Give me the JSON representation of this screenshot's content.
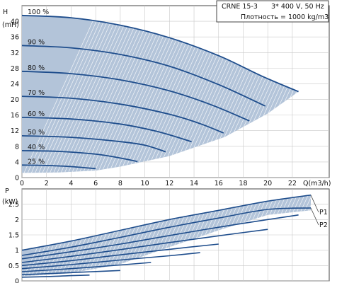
{
  "chart_data": [
    {
      "type": "line",
      "title": "",
      "info": {
        "model": "CRNE 15-3",
        "supply": "3* 400 V, 50 Hz",
        "density": "Плотность = 1000 kg/m3"
      },
      "xlabel": "Q(m3/h)",
      "ylabel": "H",
      "ylabel_unit": "(mH)",
      "xlim": [
        0,
        25
      ],
      "ylim": [
        0,
        44
      ],
      "xticks": [
        0,
        2,
        4,
        6,
        8,
        10,
        12,
        14,
        16,
        18,
        20,
        22
      ],
      "yticks": [
        0,
        4,
        8,
        12,
        16,
        20,
        24,
        28,
        32,
        36,
        40
      ],
      "grid": true,
      "envelope": {
        "upper": [
          [
            0,
            41.5
          ],
          [
            4,
            40.9
          ],
          [
            8,
            39.0
          ],
          [
            12,
            35.8
          ],
          [
            16,
            31.2
          ],
          [
            19.5,
            26.0
          ],
          [
            22.5,
            22.0
          ]
        ],
        "lower": [
          [
            22.5,
            22.0
          ],
          [
            20,
            16.4
          ],
          [
            16.5,
            10.4
          ],
          [
            12,
            5.5
          ],
          [
            8,
            2.8
          ],
          [
            6,
            1.8
          ],
          [
            3,
            1.3
          ],
          [
            0,
            1.2
          ]
        ]
      },
      "series": [
        {
          "name": "100 %",
          "points": [
            [
              0,
              41.5
            ],
            [
              4,
              40.9
            ],
            [
              8,
              39.0
            ],
            [
              12,
              35.8
            ],
            [
              16,
              31.2
            ],
            [
              19.5,
              26.0
            ],
            [
              22.5,
              22.0
            ]
          ]
        },
        {
          "name": "90 %",
          "points": [
            [
              0,
              33.8
            ],
            [
              4,
              33.2
            ],
            [
              8,
              31.5
            ],
            [
              12,
              28.5
            ],
            [
              16,
              23.8
            ],
            [
              19.8,
              18.3
            ]
          ]
        },
        {
          "name": "80 %",
          "points": [
            [
              0,
              27.2
            ],
            [
              4,
              26.6
            ],
            [
              8,
              25.0
            ],
            [
              12,
              22.2
            ],
            [
              15.5,
              18.5
            ],
            [
              18.5,
              14.5
            ]
          ]
        },
        {
          "name": "70 %",
          "points": [
            [
              0,
              20.8
            ],
            [
              4,
              20.3
            ],
            [
              8,
              18.8
            ],
            [
              12,
              16.2
            ],
            [
              14.5,
              13.8
            ],
            [
              16.4,
              11.4
            ]
          ]
        },
        {
          "name": "60 %",
          "points": [
            [
              0,
              15.4
            ],
            [
              4,
              15.0
            ],
            [
              8,
              13.7
            ],
            [
              11,
              11.8
            ],
            [
              13.8,
              9.2
            ]
          ]
        },
        {
          "name": "50 %",
          "points": [
            [
              0,
              10.7
            ],
            [
              4,
              10.3
            ],
            [
              8,
              9.2
            ],
            [
              10,
              8.3
            ],
            [
              11.7,
              6.6
            ]
          ]
        },
        {
          "name": "40 %",
          "points": [
            [
              0,
              6.9
            ],
            [
              3,
              6.7
            ],
            [
              6,
              6.0
            ],
            [
              8,
              5.0
            ],
            [
              9.4,
              4.1
            ]
          ]
        },
        {
          "name": "25 %",
          "points": [
            [
              0,
              3.2
            ],
            [
              2,
              3.1
            ],
            [
              4,
              2.8
            ],
            [
              6,
              2.3
            ]
          ]
        }
      ]
    },
    {
      "type": "line",
      "title": "",
      "xlabel": "",
      "ylabel": "P",
      "ylabel_unit": "(kW)",
      "xlim": [
        0,
        25
      ],
      "ylim": [
        0,
        3
      ],
      "xticks": [
        0,
        2,
        4,
        6,
        8,
        10,
        12,
        14,
        16,
        18,
        20,
        22
      ],
      "yticks": [
        0,
        0.5,
        1,
        1.5,
        2,
        2.5
      ],
      "ytick_labels": [
        "0",
        "0.5",
        "1",
        "1.5",
        "2",
        "2.5"
      ],
      "grid": true,
      "envelope": {
        "upper": [
          [
            0,
            1.0
          ],
          [
            4,
            1.3
          ],
          [
            8,
            1.65
          ],
          [
            12,
            2.0
          ],
          [
            16,
            2.3
          ],
          [
            20,
            2.6
          ],
          [
            23.5,
            2.8
          ]
        ],
        "lower": [
          [
            23.5,
            2.3
          ],
          [
            20,
            2.15
          ],
          [
            16,
            1.65
          ],
          [
            12,
            1.1
          ],
          [
            8,
            0.55
          ],
          [
            4,
            0.25
          ],
          [
            0,
            0.15
          ]
        ]
      },
      "legend": [
        "P1",
        "P2"
      ],
      "series": [
        {
          "name": "P1",
          "points": [
            [
              0,
              1.0
            ],
            [
              4,
              1.3
            ],
            [
              8,
              1.65
            ],
            [
              12,
              2.0
            ],
            [
              16,
              2.3
            ],
            [
              20,
              2.6
            ],
            [
              23.5,
              2.8
            ]
          ]
        },
        {
          "name": "P2",
          "points": [
            [
              0,
              0.83
            ],
            [
              4,
              1.1
            ],
            [
              8,
              1.42
            ],
            [
              12,
              1.75
            ],
            [
              16,
              2.05
            ],
            [
              20,
              2.33
            ],
            [
              23.5,
              2.38
            ]
          ]
        },
        {
          "name": "",
          "points": [
            [
              0,
              0.72
            ],
            [
              4,
              0.95
            ],
            [
              8,
              1.2
            ],
            [
              12,
              1.48
            ],
            [
              16,
              1.75
            ],
            [
              20,
              2.0
            ],
            [
              22.5,
              2.15
            ]
          ]
        },
        {
          "name": "",
          "points": [
            [
              0,
              0.6
            ],
            [
              4,
              0.8
            ],
            [
              8,
              1.02
            ],
            [
              12,
              1.25
            ],
            [
              16,
              1.47
            ],
            [
              20,
              1.68
            ]
          ]
        },
        {
          "name": "",
          "points": [
            [
              0,
              0.5
            ],
            [
              4,
              0.66
            ],
            [
              8,
              0.85
            ],
            [
              12,
              1.03
            ],
            [
              16,
              1.2
            ]
          ]
        },
        {
          "name": "",
          "points": [
            [
              0,
              0.4
            ],
            [
              4,
              0.53
            ],
            [
              8,
              0.68
            ],
            [
              12,
              0.82
            ],
            [
              14.5,
              0.92
            ]
          ]
        },
        {
          "name": "",
          "points": [
            [
              0,
              0.3
            ],
            [
              4,
              0.4
            ],
            [
              8,
              0.52
            ],
            [
              10.5,
              0.6
            ]
          ]
        },
        {
          "name": "",
          "points": [
            [
              0,
              0.2
            ],
            [
              4,
              0.27
            ],
            [
              8,
              0.34
            ]
          ]
        },
        {
          "name": "",
          "points": [
            [
              0,
              0.12
            ],
            [
              2,
              0.14
            ],
            [
              4,
              0.17
            ],
            [
              5.5,
              0.19
            ]
          ]
        }
      ]
    }
  ]
}
